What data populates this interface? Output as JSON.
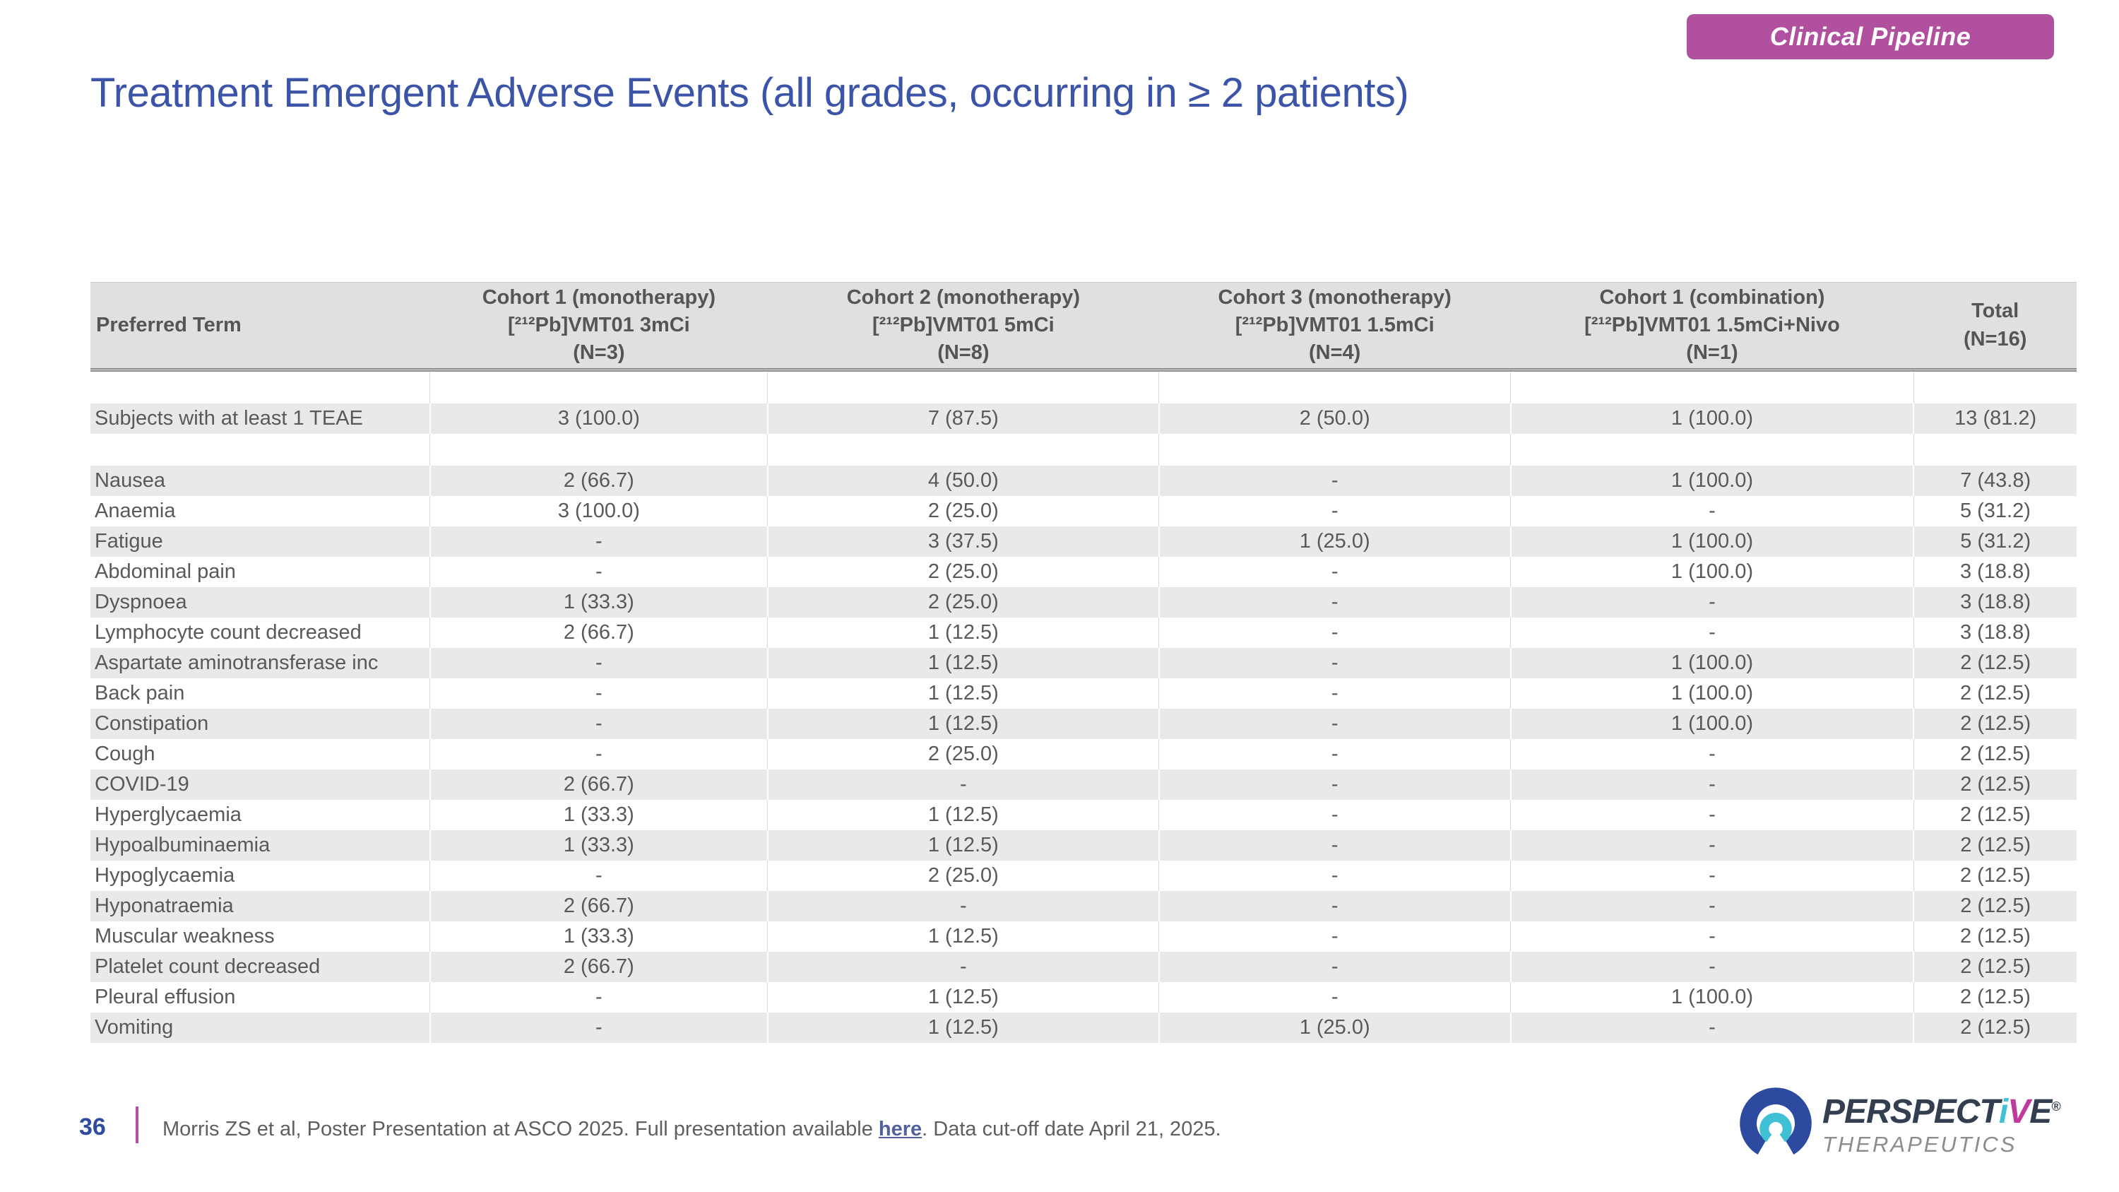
{
  "badge": {
    "label": "Clinical Pipeline",
    "bg_color": "#b0509f"
  },
  "title": "Treatment Emergent Adverse Events (all grades, occurring in ≥ 2 patients)",
  "colors": {
    "title_blue": "#3b54a8",
    "accent_magenta": "#b0509f",
    "header_gray": "#e0e0e0",
    "row_gray": "#e9e9e9",
    "logo_navy": "#2b4aa0",
    "logo_teal": "#3fc0d4",
    "logo_slate": "#333f50"
  },
  "table": {
    "columns": [
      {
        "lines": [
          "Preferred Term"
        ],
        "width_pct": 17.1
      },
      {
        "lines": [
          "Cohort 1 (monotherapy)",
          "[²¹²Pb]VMT01 3mCi",
          "(N=3)"
        ],
        "width_pct": 17.0
      },
      {
        "lines": [
          "Cohort 2 (monotherapy)",
          "[²¹²Pb]VMT01 5mCi",
          "(N=8)"
        ],
        "width_pct": 19.7
      },
      {
        "lines": [
          "Cohort 3 (monotherapy)",
          "[²¹²Pb]VMT01 1.5mCi",
          "(N=4)"
        ],
        "width_pct": 17.7
      },
      {
        "lines": [
          "Cohort 1 (combination)",
          "[²¹²Pb]VMT01 1.5mCi+Nivo",
          "(N=1)"
        ],
        "width_pct": 20.3
      },
      {
        "lines": [
          "Total",
          "(N=16)"
        ],
        "width_pct": 8.2
      }
    ],
    "rows": [
      {
        "type": "spacer"
      },
      {
        "type": "data",
        "shaded": true,
        "term": "Subjects with at least 1 TEAE",
        "values": [
          "3 (100.0)",
          "7 (87.5)",
          "2 (50.0)",
          "1 (100.0)",
          "13 (81.2)"
        ]
      },
      {
        "type": "spacer"
      },
      {
        "type": "data",
        "shaded": true,
        "term": "Nausea",
        "values": [
          "2 (66.7)",
          "4 (50.0)",
          "-",
          "1 (100.0)",
          "7 (43.8)"
        ]
      },
      {
        "type": "data",
        "shaded": false,
        "term": "Anaemia",
        "values": [
          "3 (100.0)",
          "2 (25.0)",
          "-",
          "-",
          "5 (31.2)"
        ]
      },
      {
        "type": "data",
        "shaded": true,
        "term": "Fatigue",
        "values": [
          "-",
          "3 (37.5)",
          "1 (25.0)",
          "1 (100.0)",
          "5 (31.2)"
        ]
      },
      {
        "type": "data",
        "shaded": false,
        "term": "Abdominal pain",
        "values": [
          "-",
          "2 (25.0)",
          "-",
          "1 (100.0)",
          "3 (18.8)"
        ]
      },
      {
        "type": "data",
        "shaded": true,
        "term": "Dyspnoea",
        "values": [
          "1 (33.3)",
          "2 (25.0)",
          "-",
          "-",
          "3 (18.8)"
        ]
      },
      {
        "type": "data",
        "shaded": false,
        "term": "Lymphocyte count decreased",
        "values": [
          "2 (66.7)",
          "1 (12.5)",
          "-",
          "-",
          "3 (18.8)"
        ]
      },
      {
        "type": "data",
        "shaded": true,
        "term": "Aspartate aminotransferase inc",
        "values": [
          "-",
          "1 (12.5)",
          "-",
          "1 (100.0)",
          "2 (12.5)"
        ]
      },
      {
        "type": "data",
        "shaded": false,
        "term": "Back pain",
        "values": [
          "-",
          "1 (12.5)",
          "-",
          "1 (100.0)",
          "2 (12.5)"
        ]
      },
      {
        "type": "data",
        "shaded": true,
        "term": "Constipation",
        "values": [
          "-",
          "1 (12.5)",
          "-",
          "1 (100.0)",
          "2 (12.5)"
        ]
      },
      {
        "type": "data",
        "shaded": false,
        "term": "Cough",
        "values": [
          "-",
          "2 (25.0)",
          "-",
          "-",
          "2 (12.5)"
        ]
      },
      {
        "type": "data",
        "shaded": true,
        "term": "COVID-19",
        "values": [
          "2 (66.7)",
          "-",
          "-",
          "-",
          "2 (12.5)"
        ]
      },
      {
        "type": "data",
        "shaded": false,
        "term": "Hyperglycaemia",
        "values": [
          "1 (33.3)",
          "1 (12.5)",
          "-",
          "-",
          "2 (12.5)"
        ]
      },
      {
        "type": "data",
        "shaded": true,
        "term": "Hypoalbuminaemia",
        "values": [
          "1 (33.3)",
          "1 (12.5)",
          "-",
          "-",
          "2 (12.5)"
        ]
      },
      {
        "type": "data",
        "shaded": false,
        "term": "Hypoglycaemia",
        "values": [
          "-",
          "2 (25.0)",
          "-",
          "-",
          "2 (12.5)"
        ]
      },
      {
        "type": "data",
        "shaded": true,
        "term": "Hyponatraemia",
        "values": [
          "2 (66.7)",
          "-",
          "-",
          "-",
          "2 (12.5)"
        ]
      },
      {
        "type": "data",
        "shaded": false,
        "term": "Muscular weakness",
        "values": [
          "1 (33.3)",
          "1 (12.5)",
          "-",
          "-",
          "2 (12.5)"
        ]
      },
      {
        "type": "data",
        "shaded": true,
        "term": "Platelet count decreased",
        "values": [
          "2 (66.7)",
          "-",
          "-",
          "-",
          "2 (12.5)"
        ]
      },
      {
        "type": "data",
        "shaded": false,
        "term": "Pleural effusion",
        "values": [
          "-",
          "1 (12.5)",
          "-",
          "1 (100.0)",
          "2 (12.5)"
        ]
      },
      {
        "type": "data",
        "shaded": true,
        "term": "Vomiting",
        "values": [
          "-",
          "1 (12.5)",
          "1 (25.0)",
          "-",
          "2 (12.5)"
        ]
      }
    ]
  },
  "footer": {
    "page_number": "36",
    "citation_prefix": "Morris ZS et al, Poster Presentation at ASCO 2025. Full presentation available ",
    "citation_link": "here",
    "citation_suffix": ". Data cut-off date April 21, 2025."
  },
  "logo": {
    "brand_part1": "PERSPECT",
    "brand_i": "i",
    "brand_v": "V",
    "brand_e": "E",
    "reg_mark": "®",
    "brand_sub": "THERAPEUTICS"
  }
}
